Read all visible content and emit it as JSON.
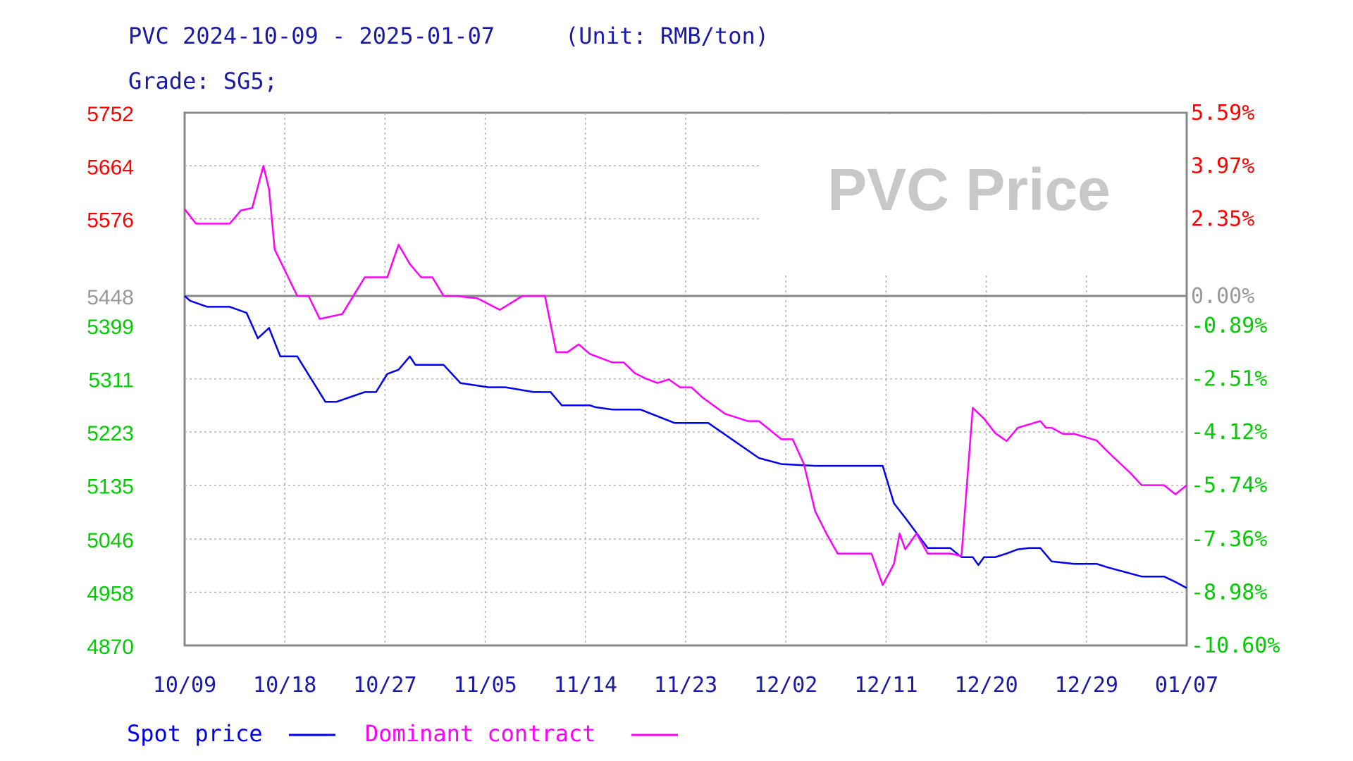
{
  "header": {
    "title": "PVC 2024-10-09 - 2025-01-07",
    "unit": "(Unit: RMB/ton)",
    "grade": "Grade: SG5;"
  },
  "chart_data": {
    "type": "line",
    "watermark": "PVC Price",
    "baseline": 5448,
    "ylim": [
      4870,
      5752
    ],
    "left_ticks": [
      "5752",
      "5664",
      "5576",
      "5448",
      "5399",
      "5311",
      "5223",
      "5135",
      "5046",
      "4958",
      "4870"
    ],
    "right_ticks": [
      "5.59%",
      "3.97%",
      "2.35%",
      "0.00%",
      "-0.89%",
      "-2.51%",
      "-4.12%",
      "-5.74%",
      "-7.36%",
      "-8.98%",
      "-10.60%"
    ],
    "x_labels": [
      "10/09",
      "10/18",
      "10/27",
      "11/05",
      "11/14",
      "11/23",
      "12/02",
      "12/11",
      "12/20",
      "12/29",
      "01/07"
    ],
    "colors": {
      "spot": "#0000ee",
      "contract": "#ff00ff",
      "up": "#ff0000",
      "down": "#00cc00",
      "neutral": "#999999",
      "text": "#1a1aa6"
    },
    "series": [
      {
        "name": "Spot price",
        "color": "#0000ee",
        "x": [
          0,
          0.5,
          2,
          4,
          5.5,
          6.5,
          7.5,
          8.5,
          10,
          12.5,
          13.5,
          16,
          17,
          18,
          19,
          20,
          20.5,
          22,
          23,
          24.5,
          27,
          28.5,
          31,
          32.5,
          33.5,
          36,
          36.5,
          38,
          40.5,
          43.5,
          46.5,
          51,
          53,
          56,
          57,
          58,
          59,
          62,
          63,
          64,
          66,
          68,
          69,
          70,
          70.5,
          71,
          72,
          73,
          74,
          75,
          76,
          77,
          79,
          81,
          82,
          85,
          87,
          88,
          89
        ],
        "y": [
          5448,
          5440,
          5430,
          5430,
          5420,
          5378,
          5395,
          5348,
          5348,
          5273,
          5273,
          5289,
          5289,
          5319,
          5326,
          5348,
          5334,
          5334,
          5334,
          5304,
          5297,
          5297,
          5289,
          5289,
          5267,
          5267,
          5264,
          5260,
          5260,
          5238,
          5238,
          5180,
          5170,
          5167,
          5167,
          5167,
          5167,
          5167,
          5105,
          5081,
          5031,
          5031,
          5016,
          5016,
          5003,
          5016,
          5016,
          5022,
          5029,
          5031,
          5031,
          5009,
          5005,
          5005,
          4999,
          4984,
          4984,
          4975,
          4965
        ]
      },
      {
        "name": "Dominant contract",
        "color": "#ff00ff",
        "x": [
          0,
          1,
          4,
          5,
          6,
          7,
          7.5,
          8,
          10,
          11,
          12,
          14,
          16,
          16.5,
          18,
          19,
          20,
          21,
          22,
          23,
          24,
          26,
          28,
          30,
          32,
          33,
          34,
          35,
          36,
          38,
          39,
          40,
          41,
          42,
          43,
          44,
          45,
          46,
          48,
          50,
          51,
          53,
          54,
          55,
          56,
          57,
          58,
          60,
          61,
          62,
          63,
          63.5,
          64,
          65,
          66,
          68,
          69,
          70,
          71,
          72,
          73,
          74,
          76,
          76.5,
          77,
          78,
          79,
          81,
          82,
          84,
          85,
          86,
          87,
          88,
          89
        ],
        "y": [
          5592,
          5568,
          5568,
          5590,
          5594,
          5664,
          5625,
          5525,
          5448,
          5448,
          5410,
          5418,
          5479,
          5479,
          5479,
          5533,
          5501,
          5479,
          5479,
          5448,
          5448,
          5444,
          5425,
          5448,
          5448,
          5355,
          5355,
          5368,
          5352,
          5338,
          5338,
          5320,
          5311,
          5304,
          5310,
          5297,
          5297,
          5280,
          5253,
          5241,
          5241,
          5211,
          5211,
          5170,
          5092,
          5055,
          5022,
          5022,
          5022,
          4970,
          5005,
          5055,
          5029,
          5055,
          5022,
          5022,
          5018,
          5263,
          5245,
          5221,
          5208,
          5230,
          5241,
          5230,
          5230,
          5220,
          5220,
          5209,
          5190,
          5155,
          5135,
          5135,
          5135,
          5120,
          5135
        ]
      }
    ]
  },
  "legend": {
    "spot_label": "Spot price",
    "contract_label": "Dominant contract"
  }
}
